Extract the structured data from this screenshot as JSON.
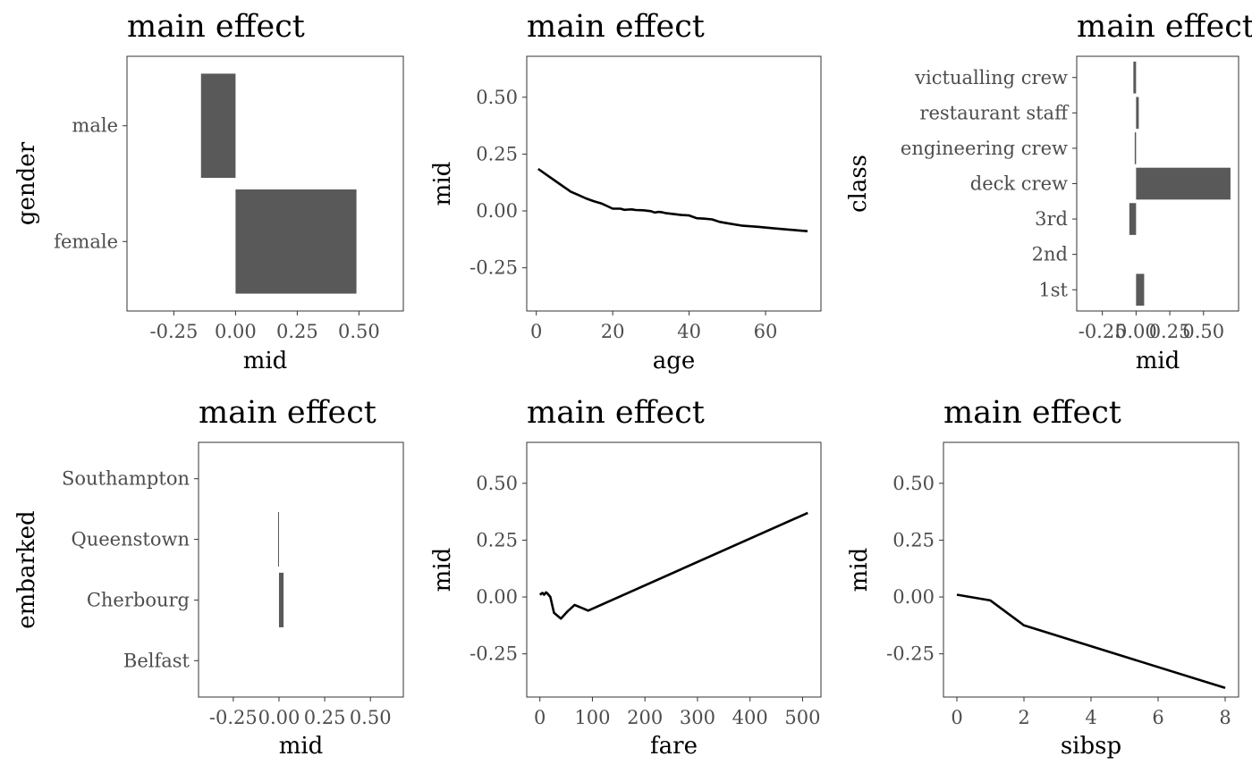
{
  "chart_data": [
    {
      "id": "gender",
      "type": "bar",
      "orientation": "horizontal",
      "title": "main effect",
      "xlabel": "mid",
      "ylabel": "gender",
      "categories": [
        "female",
        "male"
      ],
      "values": [
        0.49,
        -0.14
      ],
      "xlim": [
        -0.44,
        0.68
      ],
      "xticks": [
        "-0.25",
        "0.00",
        "0.25",
        "0.50"
      ],
      "color": "#595959"
    },
    {
      "id": "age",
      "type": "line",
      "title": "main effect",
      "xlabel": "age",
      "ylabel": "mid",
      "x": [
        0.5,
        3,
        6,
        9,
        11,
        13,
        15,
        17,
        19,
        20,
        22,
        23,
        24,
        25,
        26,
        28,
        30,
        31,
        32,
        33,
        34,
        36,
        38,
        40,
        42,
        44,
        46,
        48,
        50,
        54,
        58,
        62,
        66,
        71
      ],
      "y": [
        0.185,
        0.155,
        0.12,
        0.085,
        0.07,
        0.055,
        0.043,
        0.033,
        0.018,
        0.01,
        0.01,
        0.005,
        0.006,
        0.007,
        0.004,
        0.003,
        -0.001,
        -0.007,
        -0.004,
        -0.006,
        -0.01,
        -0.014,
        -0.018,
        -0.02,
        -0.032,
        -0.034,
        -0.037,
        -0.048,
        -0.054,
        -0.065,
        -0.07,
        -0.076,
        -0.082,
        -0.089
      ],
      "xlim": [
        -2.5,
        74.5
      ],
      "ylim": [
        -0.44,
        0.68
      ],
      "xticks": [
        "0",
        "20",
        "40",
        "60"
      ],
      "yticks": [
        "-0.25",
        "0.00",
        "0.25",
        "0.50"
      ]
    },
    {
      "id": "class",
      "type": "bar",
      "orientation": "horizontal",
      "title": "main effect",
      "xlabel": "mid",
      "ylabel": "class",
      "categories": [
        "1st",
        "2nd",
        "3rd",
        "deck crew",
        "engineering crew",
        "restaurant staff",
        "victualling crew"
      ],
      "values": [
        0.06,
        0.0,
        -0.05,
        0.7,
        -0.01,
        0.02,
        -0.02
      ],
      "xlim": [
        -0.44,
        0.76
      ],
      "xticks": [
        "-0.25",
        "0.00",
        "0.25",
        "0.50"
      ],
      "color": "#595959"
    },
    {
      "id": "embarked",
      "type": "bar",
      "orientation": "horizontal",
      "title": "main effect",
      "xlabel": "mid",
      "ylabel": "embarked",
      "categories": [
        "Belfast",
        "Cherbourg",
        "Queenstown",
        "Southampton"
      ],
      "values": [
        0.0,
        0.025,
        -0.005,
        0.0
      ],
      "xlim": [
        -0.44,
        0.68
      ],
      "xticks": [
        "-0.25",
        "0.00",
        "0.25",
        "0.50"
      ],
      "color": "#595959"
    },
    {
      "id": "fare",
      "type": "line",
      "title": "main effect",
      "xlabel": "fare",
      "ylabel": "mid",
      "x": [
        0,
        5,
        8,
        12,
        15,
        20,
        27,
        40,
        52,
        66,
        82,
        92,
        510
      ],
      "y": [
        0.01,
        0.018,
        0.01,
        0.02,
        0.014,
        0.0,
        -0.07,
        -0.095,
        -0.065,
        -0.035,
        -0.05,
        -0.06,
        0.37
      ],
      "xlim": [
        -25,
        535
      ],
      "ylim": [
        -0.44,
        0.68
      ],
      "xticks": [
        "0",
        "100",
        "200",
        "300",
        "400",
        "500"
      ],
      "yticks": [
        "-0.25",
        "0.00",
        "0.25",
        "0.50"
      ]
    },
    {
      "id": "sibsp",
      "type": "line",
      "title": "main effect",
      "xlabel": "sibsp",
      "ylabel": "mid",
      "x": [
        0,
        1,
        2,
        8
      ],
      "y": [
        0.01,
        -0.015,
        -0.125,
        -0.4
      ],
      "xlim": [
        -0.4,
        8.4
      ],
      "ylim": [
        -0.44,
        0.68
      ],
      "xticks": [
        "0",
        "2",
        "4",
        "6",
        "8"
      ],
      "yticks": [
        "-0.25",
        "0.00",
        "0.25",
        "0.50"
      ]
    }
  ]
}
